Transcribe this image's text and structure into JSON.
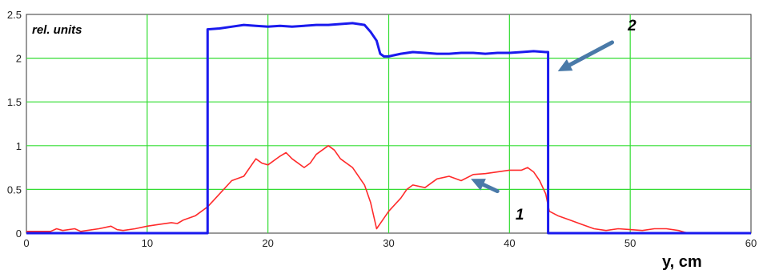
{
  "chart_data": {
    "type": "line",
    "title": "",
    "xlabel": "y, cm",
    "ylabel": "rel. units",
    "xlim": [
      0,
      60
    ],
    "ylim": [
      0,
      2.5
    ],
    "xticks": [
      "0",
      "10",
      "20",
      "30",
      "40",
      "50",
      "60"
    ],
    "yticks": [
      "0",
      "0.5",
      "1",
      "1.5",
      "2",
      "2.5"
    ],
    "grid": true,
    "colors": {
      "grid": "#33dd33",
      "series1": "#ff2a2a",
      "series2": "#1a1aee",
      "arrow": "#4a7aa8"
    },
    "annotations": [
      {
        "label": "1",
        "series": 1,
        "text_at": [
          40.5,
          0.22
        ],
        "arrow_from": [
          39.0,
          0.48
        ],
        "arrow_to": [
          36.8,
          0.62
        ]
      },
      {
        "label": "2",
        "series": 2,
        "text_at": [
          49.8,
          2.38
        ],
        "arrow_from": [
          48.5,
          2.18
        ],
        "arrow_to": [
          44.0,
          1.85
        ]
      }
    ],
    "series": [
      {
        "x": [
          0,
          2,
          2.5,
          3,
          4,
          4.5,
          5,
          6,
          7,
          7.5,
          8,
          9,
          10,
          11,
          12,
          12.5,
          13,
          14,
          14.5,
          15,
          16,
          17,
          18,
          19,
          19.5,
          20,
          21,
          21.5,
          22,
          23,
          23.5,
          24,
          25,
          25.5,
          26,
          27,
          28,
          28.5,
          29,
          29.5,
          30,
          31,
          31.5,
          32,
          33,
          34,
          35,
          36,
          37,
          38,
          39,
          40,
          41,
          41.5,
          42,
          42.5,
          43,
          43.3,
          44,
          45,
          46,
          47,
          48,
          49,
          50,
          51,
          52,
          53,
          54,
          54.5,
          55
        ],
        "y": [
          0.02,
          0.02,
          0.05,
          0.03,
          0.05,
          0.02,
          0.03,
          0.05,
          0.08,
          0.04,
          0.03,
          0.05,
          0.08,
          0.1,
          0.12,
          0.11,
          0.15,
          0.2,
          0.25,
          0.3,
          0.45,
          0.6,
          0.65,
          0.85,
          0.8,
          0.78,
          0.88,
          0.92,
          0.85,
          0.75,
          0.8,
          0.9,
          1.0,
          0.95,
          0.85,
          0.75,
          0.55,
          0.35,
          0.05,
          0.15,
          0.25,
          0.4,
          0.5,
          0.55,
          0.52,
          0.62,
          0.65,
          0.6,
          0.67,
          0.68,
          0.7,
          0.72,
          0.72,
          0.75,
          0.7,
          0.6,
          0.45,
          0.25,
          0.2,
          0.15,
          0.1,
          0.05,
          0.03,
          0.05,
          0.04,
          0.03,
          0.05,
          0.05,
          0.03,
          0.01,
          0.0
        ]
      },
      {
        "x": [
          0,
          15,
          15,
          16,
          17,
          18,
          19,
          20,
          21,
          22,
          23,
          24,
          25,
          26,
          27,
          27.5,
          28,
          28.5,
          29,
          29.3,
          29.6,
          30,
          31,
          32,
          33,
          34,
          35,
          36,
          37,
          38,
          39,
          40,
          41,
          42,
          43,
          43.2,
          43.2,
          45,
          50,
          55,
          60
        ],
        "y": [
          0.0,
          0.0,
          2.33,
          2.34,
          2.36,
          2.38,
          2.37,
          2.36,
          2.37,
          2.36,
          2.37,
          2.38,
          2.38,
          2.39,
          2.4,
          2.39,
          2.38,
          2.3,
          2.2,
          2.05,
          2.02,
          2.02,
          2.05,
          2.07,
          2.06,
          2.05,
          2.05,
          2.06,
          2.06,
          2.05,
          2.06,
          2.06,
          2.07,
          2.08,
          2.07,
          2.07,
          0.0,
          0.0,
          0.0,
          0.0,
          0.0
        ]
      }
    ]
  }
}
